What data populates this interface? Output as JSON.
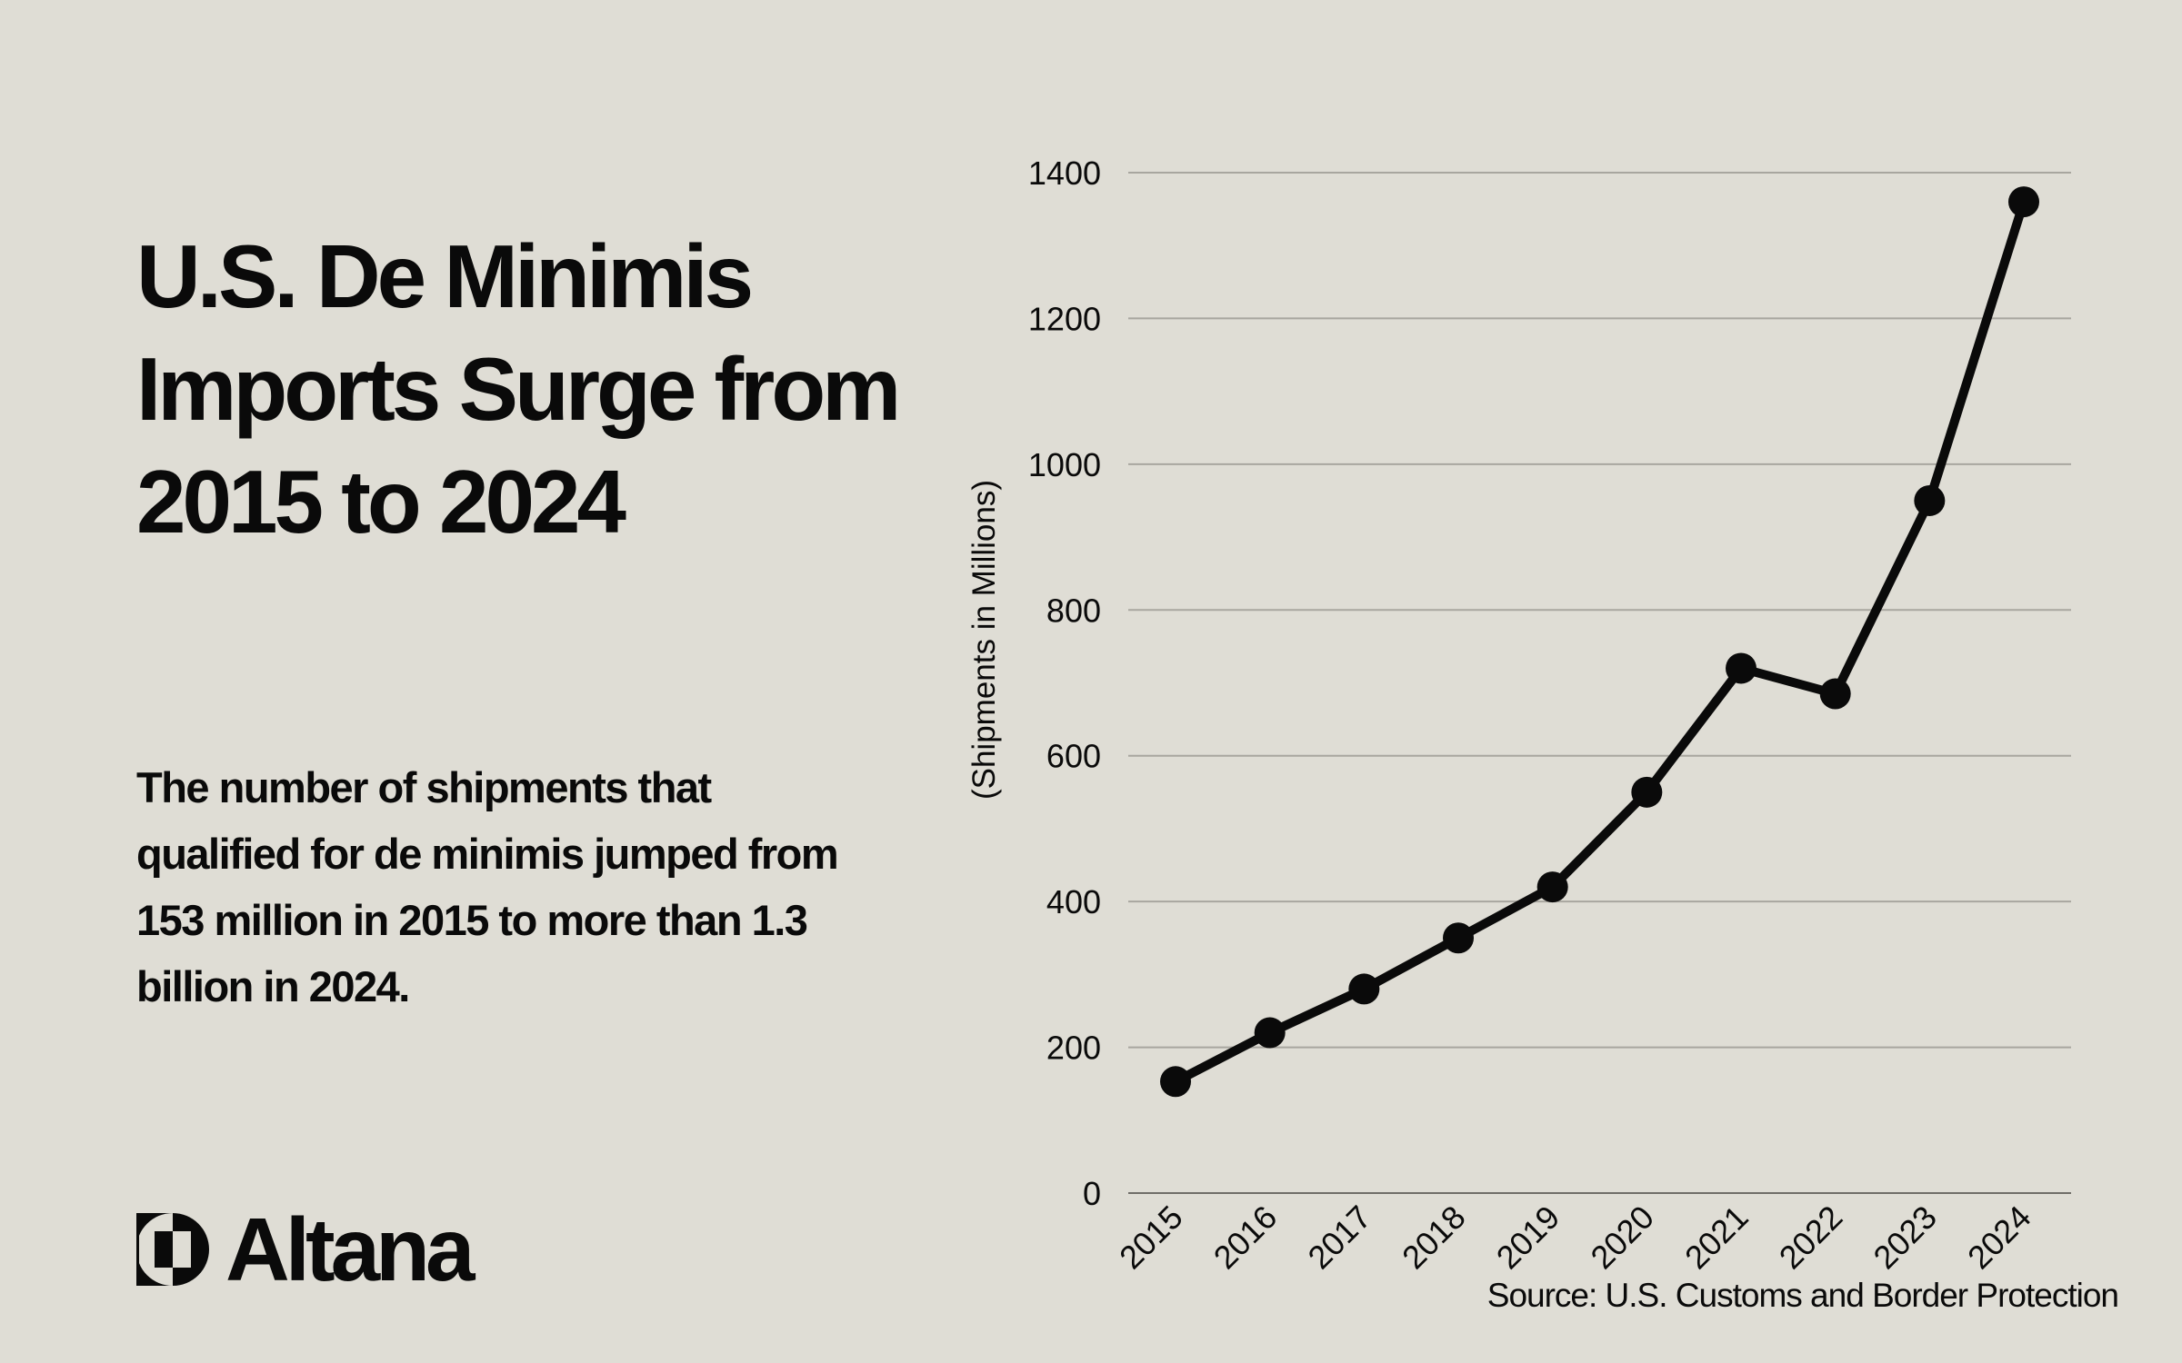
{
  "title": "U.S. De Minimis Imports Surge from 2015 to 2024",
  "subtitle": "The number of shipments that qualified for de minimis jumped from 153 million in 2015 to more than 1.3 billion in 2024.",
  "brand": "Altana",
  "source": "Source: U.S. Customs and Border Protection",
  "chart_data": {
    "type": "line",
    "categories": [
      "2015",
      "2016",
      "2017",
      "2018",
      "2019",
      "2020",
      "2021",
      "2022",
      "2023",
      "2024"
    ],
    "values": [
      153,
      220,
      280,
      350,
      420,
      550,
      720,
      685,
      950,
      1360
    ],
    "ylabel": "(Shipments in Millions)",
    "xlabel": "",
    "ylim": [
      0,
      1400
    ],
    "yticks": [
      0,
      200,
      400,
      600,
      800,
      1000,
      1200,
      1400
    ],
    "grid": true,
    "markers": true,
    "line_color": "#0a0a0a",
    "grid_color": "#a8a69f"
  }
}
